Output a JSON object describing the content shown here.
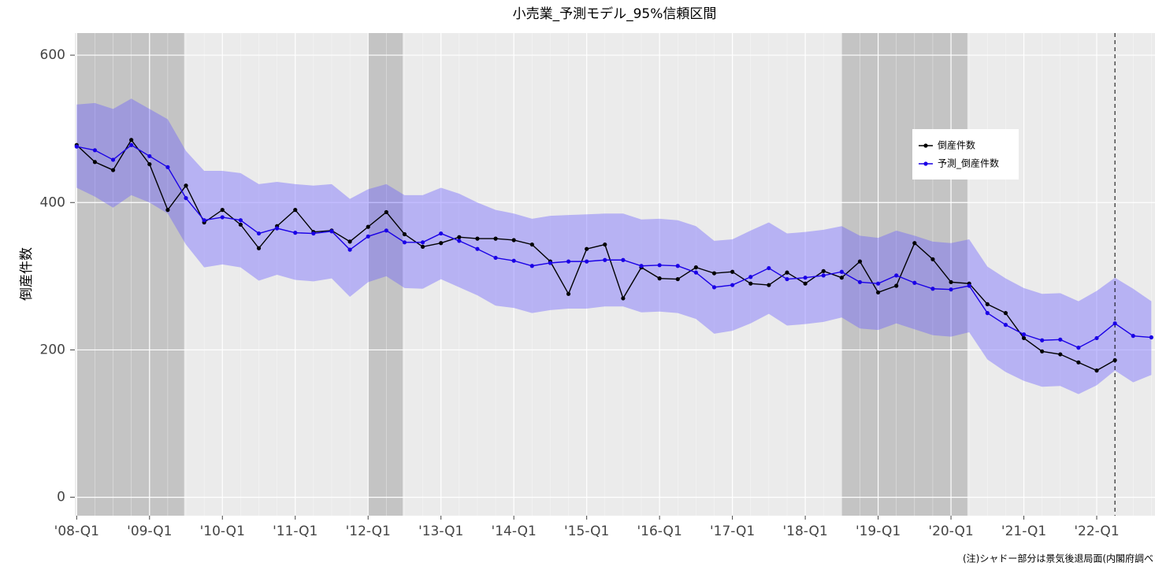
{
  "chart_data": {
    "type": "line",
    "title": "小売業_予測モデル_95%信頼区間",
    "y_label": "倒産件数",
    "note": "(注)シャドー部分は景気後退局面(内閣府調べ",
    "categories": [
      "'08-Q1",
      null,
      null,
      null,
      "'09-Q1",
      null,
      null,
      null,
      "'10-Q1",
      null,
      null,
      null,
      "'11-Q1",
      null,
      null,
      null,
      "'12-Q1",
      null,
      null,
      null,
      "'13-Q1",
      null,
      null,
      null,
      "'14-Q1",
      null,
      null,
      null,
      "'15-Q1",
      null,
      null,
      null,
      "'16-Q1",
      null,
      null,
      null,
      "'17-Q1",
      null,
      null,
      null,
      "'18-Q1",
      null,
      null,
      null,
      "'19-Q1",
      null,
      null,
      null,
      "'20-Q1",
      null,
      null,
      null,
      "'21-Q1",
      null,
      null,
      null,
      "'22-Q1",
      null,
      null,
      null
    ],
    "series": [
      {
        "name": "倒産件数",
        "color": "#000000",
        "values": [
          478,
          455,
          444,
          485,
          452,
          390,
          423,
          373,
          390,
          370,
          338,
          368,
          390,
          360,
          362,
          347,
          367,
          387,
          357,
          340,
          345,
          353,
          351,
          351,
          349,
          343,
          320,
          276,
          337,
          343,
          270,
          312,
          297,
          296,
          312,
          304,
          306,
          290,
          288,
          305,
          290,
          307,
          298,
          320,
          278,
          287,
          345,
          323,
          292,
          290,
          262,
          250,
          216,
          198,
          194,
          183,
          172,
          186,
          null,
          null
        ]
      },
      {
        "name": "予測_倒産件数",
        "color": "#1a00e6",
        "values": [
          476,
          471,
          458,
          478,
          463,
          448,
          406,
          376,
          380,
          376,
          358,
          365,
          359,
          358,
          361,
          336,
          354,
          362,
          346,
          346,
          358,
          348,
          337,
          325,
          321,
          314,
          318,
          320,
          320,
          322,
          322,
          314,
          315,
          314,
          305,
          285,
          288,
          299,
          311,
          296,
          298,
          301,
          306,
          292,
          290,
          301,
          291,
          283,
          282,
          287,
          250,
          234,
          221,
          213,
          214,
          203,
          216,
          236,
          219,
          217
        ]
      }
    ],
    "band": {
      "color": "#6a5cff",
      "upper": [
        533,
        535,
        527,
        541,
        527,
        513,
        470,
        443,
        443,
        440,
        425,
        428,
        425,
        423,
        425,
        405,
        418,
        425,
        410,
        410,
        420,
        412,
        400,
        390,
        385,
        378,
        382,
        383,
        384,
        385,
        385,
        377,
        378,
        376,
        368,
        348,
        350,
        362,
        373,
        358,
        360,
        363,
        368,
        355,
        352,
        362,
        355,
        347,
        345,
        350,
        313,
        297,
        284,
        276,
        277,
        266,
        280,
        298,
        283,
        266
      ],
      "lower": [
        420,
        408,
        393,
        410,
        400,
        385,
        343,
        312,
        316,
        312,
        294,
        302,
        295,
        293,
        297,
        272,
        292,
        300,
        284,
        283,
        296,
        285,
        274,
        260,
        257,
        250,
        254,
        256,
        256,
        259,
        259,
        251,
        252,
        250,
        242,
        222,
        226,
        236,
        249,
        233,
        235,
        238,
        244,
        229,
        227,
        236,
        228,
        220,
        218,
        224,
        187,
        170,
        158,
        150,
        151,
        140,
        152,
        172,
        156,
        166
      ]
    },
    "shaded_periods": [
      [
        0,
        5.9
      ],
      [
        16,
        17.9
      ],
      [
        42,
        48.9
      ]
    ],
    "vline": 57,
    "xlim": [
      -0.1,
      59.2
    ],
    "ylim": [
      -25,
      630
    ],
    "yticks": [
      0,
      200,
      400,
      600
    ],
    "grid": true,
    "legend": "upper right"
  }
}
